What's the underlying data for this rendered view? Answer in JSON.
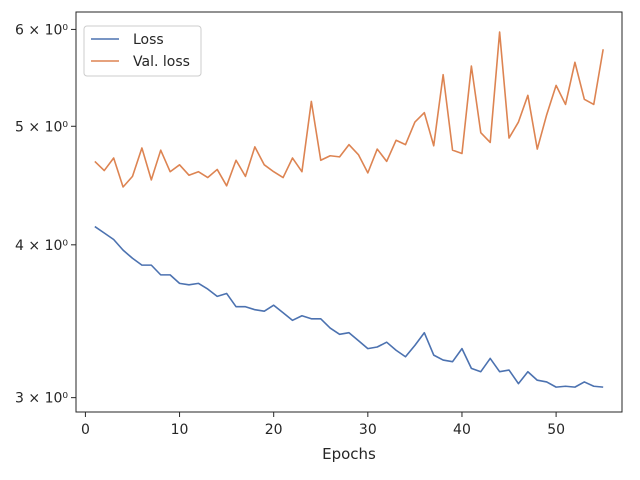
{
  "chart_data": {
    "type": "line",
    "title": "",
    "xlabel": "Epochs",
    "ylabel": "",
    "yscale": "log",
    "xlim": [
      -1,
      57
    ],
    "ylim": [
      2.92,
      6.2
    ],
    "x_ticks": [
      0,
      10,
      20,
      30,
      40,
      50
    ],
    "x_tick_labels": [
      "0",
      "10",
      "20",
      "30",
      "40",
      "50"
    ],
    "y_ticks": [
      3,
      4,
      5,
      6
    ],
    "y_tick_labels": [
      "3 × 10⁰",
      "4 × 10⁰",
      "5 × 10⁰",
      "6 × 10⁰"
    ],
    "grid": false,
    "legend_position": "top-left",
    "x": [
      1,
      2,
      3,
      4,
      5,
      6,
      7,
      8,
      9,
      10,
      11,
      12,
      13,
      14,
      15,
      16,
      17,
      18,
      19,
      20,
      21,
      22,
      23,
      24,
      25,
      26,
      27,
      28,
      29,
      30,
      31,
      32,
      33,
      34,
      35,
      36,
      37,
      38,
      39,
      40,
      41,
      42,
      43,
      44,
      45,
      46,
      47,
      48,
      49,
      50,
      51,
      52,
      53,
      54,
      55
    ],
    "series": [
      {
        "name": "Loss",
        "color": "#4c72b0",
        "values": [
          4.14,
          4.09,
          4.04,
          3.96,
          3.9,
          3.85,
          3.85,
          3.78,
          3.78,
          3.72,
          3.71,
          3.72,
          3.68,
          3.63,
          3.65,
          3.56,
          3.56,
          3.54,
          3.53,
          3.57,
          3.52,
          3.47,
          3.5,
          3.48,
          3.48,
          3.42,
          3.38,
          3.39,
          3.34,
          3.29,
          3.3,
          3.33,
          3.28,
          3.24,
          3.31,
          3.39,
          3.25,
          3.22,
          3.21,
          3.29,
          3.17,
          3.15,
          3.23,
          3.15,
          3.16,
          3.08,
          3.15,
          3.1,
          3.09,
          3.06,
          3.065,
          3.06,
          3.09,
          3.065,
          3.06
        ]
      },
      {
        "name": "Val. loss",
        "color": "#dd8452",
        "values": [
          4.68,
          4.6,
          4.71,
          4.46,
          4.55,
          4.8,
          4.52,
          4.78,
          4.59,
          4.65,
          4.56,
          4.59,
          4.54,
          4.61,
          4.47,
          4.69,
          4.55,
          4.81,
          4.65,
          4.59,
          4.54,
          4.71,
          4.59,
          5.24,
          4.69,
          4.73,
          4.72,
          4.83,
          4.74,
          4.58,
          4.79,
          4.68,
          4.87,
          4.83,
          5.04,
          5.13,
          4.82,
          5.51,
          4.78,
          4.75,
          5.6,
          4.94,
          4.85,
          5.97,
          4.89,
          5.04,
          5.3,
          4.79,
          5.11,
          5.4,
          5.21,
          5.64,
          5.26,
          5.21,
          5.78
        ]
      }
    ]
  }
}
